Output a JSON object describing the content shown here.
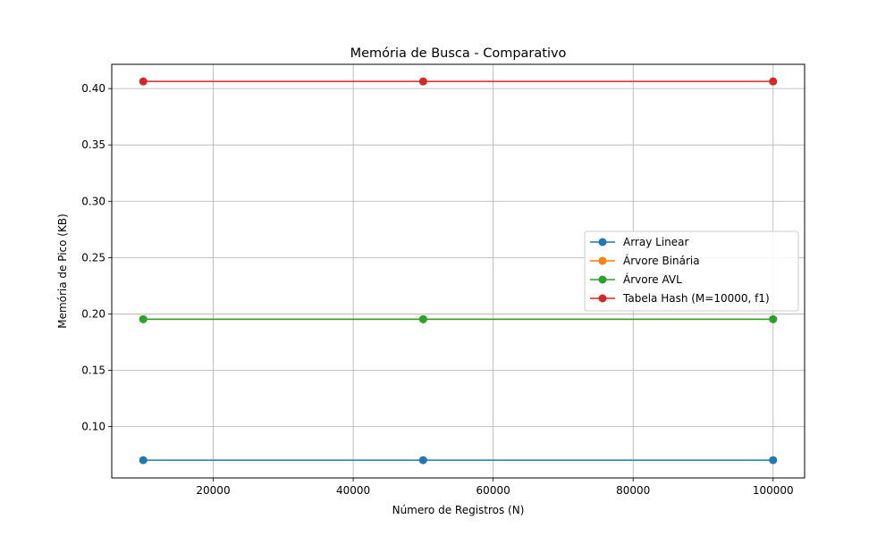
{
  "chart_data": {
    "type": "line",
    "title": "Memória de Busca - Comparativo",
    "xlabel": "Número de Registros (N)",
    "ylabel": "Memória de Pico (KB)",
    "x": [
      10000,
      50000,
      100000
    ],
    "xlim": [
      5500,
      104500
    ],
    "ylim": [
      0.0545,
      0.4215
    ],
    "xticks": [
      20000,
      40000,
      60000,
      80000,
      100000
    ],
    "yticks": [
      0.1,
      0.15,
      0.2,
      0.25,
      0.3,
      0.35,
      0.4
    ],
    "xtick_labels": [
      "20000",
      "40000",
      "60000",
      "80000",
      "100000"
    ],
    "ytick_labels": [
      "0.10",
      "0.15",
      "0.20",
      "0.25",
      "0.30",
      "0.35",
      "0.40"
    ],
    "grid": true,
    "legend_position": "center-right",
    "series": [
      {
        "name": "Array Linear",
        "values": [
          0.0703,
          0.0703,
          0.0703
        ],
        "color": "#1f77b4"
      },
      {
        "name": "Árvore Binária",
        "values": [
          0.1953,
          0.1953,
          0.1953
        ],
        "color": "#ff7f0e"
      },
      {
        "name": "Árvore AVL",
        "values": [
          0.1953,
          0.1953,
          0.1953
        ],
        "color": "#2ca02c"
      },
      {
        "name": "Tabela Hash (M=10000, f1)",
        "values": [
          0.4063,
          0.4063,
          0.4063
        ],
        "color": "#d62728"
      }
    ]
  }
}
